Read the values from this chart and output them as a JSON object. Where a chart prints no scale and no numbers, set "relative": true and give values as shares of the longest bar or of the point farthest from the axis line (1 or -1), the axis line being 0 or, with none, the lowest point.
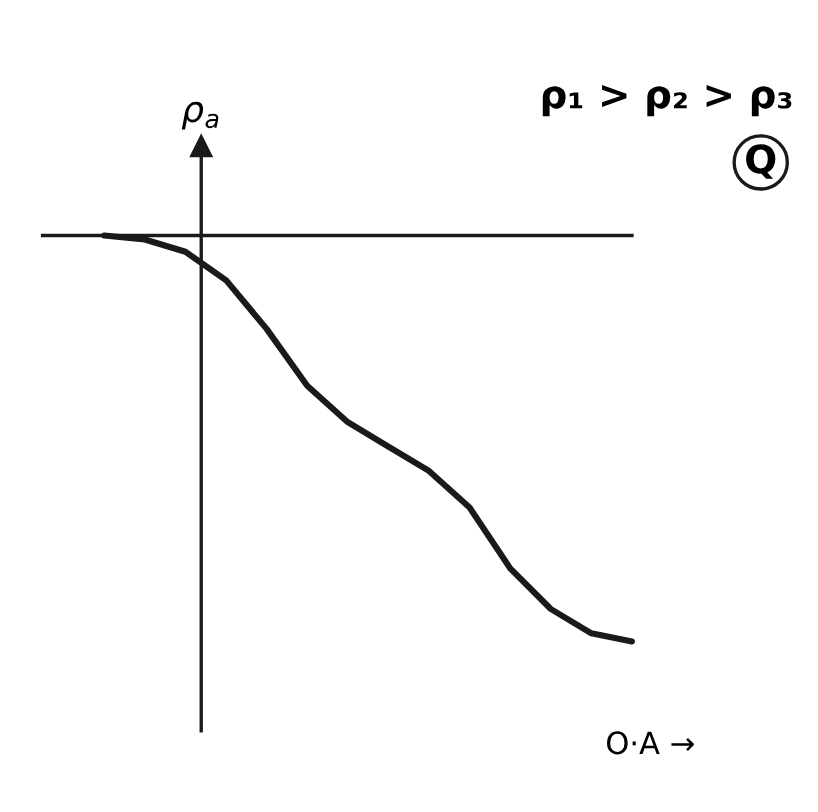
{
  "chart_data": {
    "type": "line",
    "relative": true,
    "xlabel": "O·A →",
    "ylabel": "ρ$_{a}$",
    "title": "ρ₁ > ρ₂ > ρ₃",
    "annotations": [
      "Q"
    ],
    "categories": [
      null,
      null,
      null,
      null,
      null,
      null,
      null,
      null,
      null,
      null,
      null,
      null,
      null,
      null
    ],
    "series": [
      {
        "color": "#1a1a1a",
        "values": [
          0,
          -0.01,
          -0.04,
          -0.11,
          -0.23,
          -0.37,
          -0.46,
          -0.52,
          -0.58,
          -0.67,
          -0.82,
          -0.92,
          -0.98,
          -1.0
        ]
      }
    ]
  }
}
